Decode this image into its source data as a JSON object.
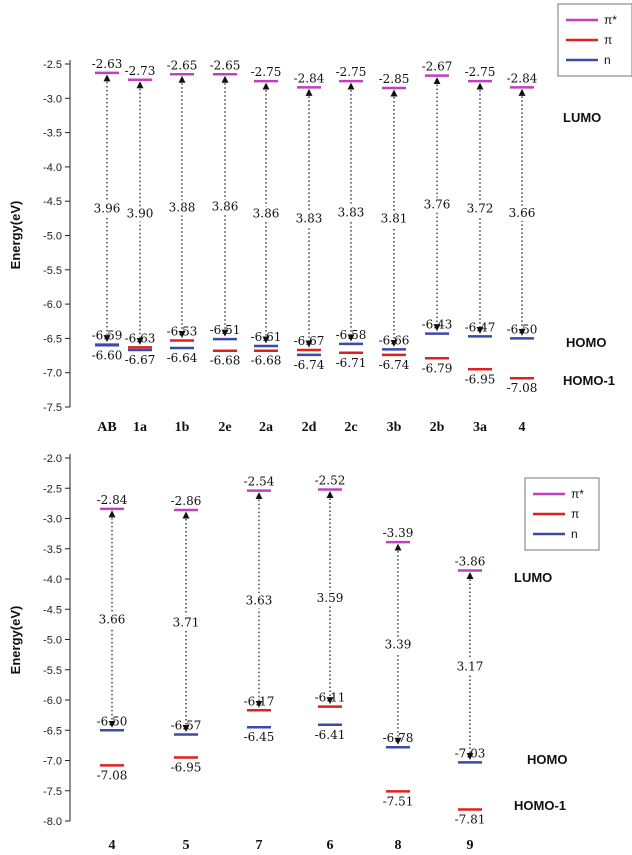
{
  "chart_data": [
    {
      "type": "energy-level",
      "ylabel": "Energy(eV)",
      "ylim": [
        -7.5,
        -2.5
      ],
      "yticks": [
        "-2.5",
        "-3.0",
        "-3.5",
        "-4.0",
        "-4.5",
        "-5.0",
        "-5.5",
        "-6.0",
        "-6.5",
        "-7.0",
        "-7.5"
      ],
      "categories": [
        "AB",
        "1a",
        "1b",
        "2e",
        "2a",
        "2d",
        "2c",
        "3b",
        "2b",
        "3a",
        "4"
      ],
      "lumo": [
        "-2.63",
        "-2.73",
        "-2.65",
        "-2.65",
        "-2.75",
        "-2.84",
        "-2.75",
        "-2.85",
        "-2.67",
        "-2.75",
        "-2.84"
      ],
      "homo": [
        "-6.59",
        "-6.63",
        "-6.53",
        "-6.51",
        "-6.61",
        "-6.67",
        "-6.58",
        "-6.66",
        "-6.43",
        "-6.47",
        "-6.50"
      ],
      "homo1": [
        "-6.60",
        "-6.67",
        "-6.64",
        "-6.68",
        "-6.68",
        "-6.74",
        "-6.71",
        "-6.74",
        "-6.79",
        "-6.95",
        "-7.08"
      ],
      "gap": [
        "3.96",
        "3.90",
        "3.88",
        "3.86",
        "3.86",
        "3.83",
        "3.83",
        "3.81",
        "3.76",
        "3.72",
        "3.66"
      ],
      "homo_color": [
        "blue",
        "red",
        "red",
        "blue",
        "blue",
        "red",
        "blue",
        "blue",
        "blue",
        "blue",
        "blue"
      ],
      "homo1_color": [
        "blue",
        "blue",
        "blue",
        "red",
        "red",
        "blue",
        "red",
        "red",
        "red",
        "red",
        "red"
      ],
      "annotations": [
        "LUMO",
        "HOMO",
        "HOMO-1"
      ],
      "legend": [
        "π*",
        "π",
        "n"
      ]
    },
    {
      "type": "energy-level",
      "ylabel": "Energy(eV)",
      "ylim": [
        -8.0,
        -2.0
      ],
      "yticks": [
        "-2.0",
        "-2.5",
        "-3.0",
        "-3.5",
        "-4.0",
        "-4.5",
        "-5.0",
        "-5.5",
        "-6.0",
        "-6.5",
        "-7.0",
        "-7.5",
        "-8.0"
      ],
      "categories": [
        "4",
        "5",
        "7",
        "6",
        "8",
        "9"
      ],
      "lumo": [
        "-2.84",
        "-2.86",
        "-2.54",
        "-2.52",
        "-3.39",
        "-3.86"
      ],
      "homo": [
        "-6.50",
        "-6.57",
        "-6.17",
        "-6.11",
        "-6.78",
        "-7.03"
      ],
      "homo1": [
        "-7.08",
        "-6.95",
        "-6.45",
        "-6.41",
        "-7.51",
        "-7.81"
      ],
      "gap": [
        "3.66",
        "3.71",
        "3.63",
        "3.59",
        "3.39",
        "3.17"
      ],
      "homo_color": [
        "blue",
        "blue",
        "red",
        "red",
        "blue",
        "blue"
      ],
      "homo1_color": [
        "red",
        "red",
        "blue",
        "blue",
        "red",
        "red"
      ],
      "annotations": [
        "LUMO",
        "HOMO",
        "HOMO-1"
      ],
      "legend": [
        "π*",
        "π",
        "n"
      ]
    }
  ],
  "colors": {
    "pi_star": "#c040c0",
    "pi": "#e02020",
    "n": "#3a4aa8"
  }
}
